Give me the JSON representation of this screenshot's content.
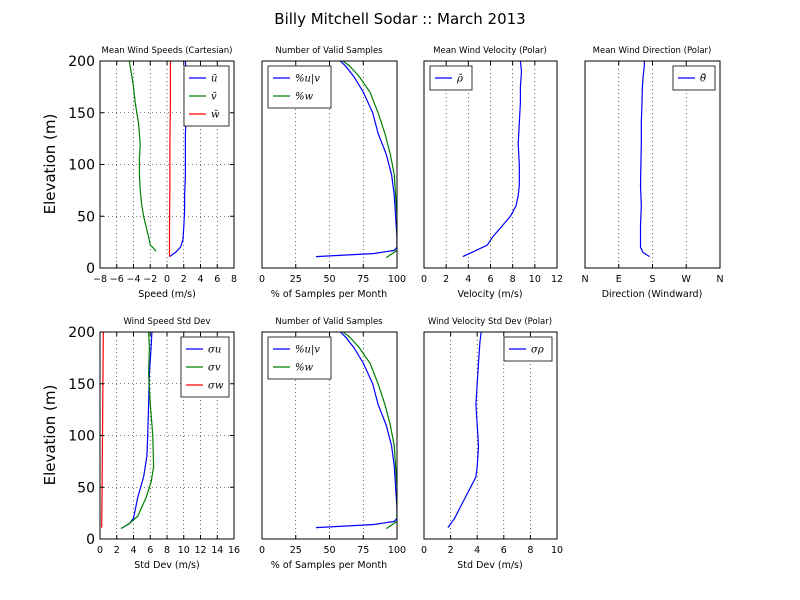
{
  "figure_title": "Billy Mitchell Sodar :: March 2013",
  "chart_data": [
    {
      "id": "p1",
      "type": "line",
      "title": "Mean Wind Speeds (Cartesian)",
      "xlabel": "Speed (m/s)",
      "ylabel": "Elevation (m)",
      "xlim": [
        -8,
        8
      ],
      "ylim": [
        0,
        200
      ],
      "xticks": [
        -8,
        -6,
        -4,
        -2,
        0,
        2,
        4,
        6,
        8
      ],
      "xtick_labels": [
        "−8",
        "−6",
        "−4",
        "−2",
        "0",
        "2",
        "4",
        "6",
        "8"
      ],
      "yticks": [
        0,
        50,
        100,
        150,
        200
      ],
      "ytick_labels": [
        "0",
        "50",
        "100",
        "150",
        "200"
      ],
      "grid": true,
      "legend": "top-right",
      "series": [
        {
          "name": "ū",
          "color": "#0000ff",
          "x": [
            0.3,
            1.0,
            1.6,
            1.9,
            2.0,
            2.1,
            2.1,
            2.2,
            2.2,
            2.2,
            2.3,
            2.2,
            2.3,
            2.2
          ],
          "y": [
            11,
            15,
            20,
            27,
            40,
            55,
            70,
            90,
            110,
            130,
            150,
            170,
            185,
            200
          ]
        },
        {
          "name": "v̄",
          "color": "#008000",
          "x": [
            -1.3,
            -1.6,
            -2.0,
            -2.2,
            -2.5,
            -2.8,
            -3.0,
            -3.2,
            -3.3,
            -3.3,
            -3.2,
            -3.4,
            -3.8,
            -4.0,
            -4.3,
            -4.5
          ],
          "y": [
            16,
            19,
            22,
            30,
            40,
            50,
            60,
            75,
            90,
            105,
            120,
            140,
            160,
            175,
            190,
            200
          ]
        },
        {
          "name": "w̄",
          "color": "#ff0000",
          "x": [
            0.3,
            0.3,
            0.35,
            0.35,
            0.4,
            0.4
          ],
          "y": [
            11,
            40,
            80,
            120,
            160,
            200
          ]
        }
      ]
    },
    {
      "id": "p2",
      "type": "line",
      "title": "Number of Valid Samples",
      "xlabel": "% of Samples per Month",
      "ylabel": "",
      "xlim": [
        0,
        100
      ],
      "ylim": [
        0,
        200
      ],
      "xticks": [
        0,
        25,
        50,
        75,
        100
      ],
      "xtick_labels": [
        "0",
        "25",
        "50",
        "75",
        "100"
      ],
      "grid": true,
      "legend": "top-left",
      "series": [
        {
          "name": "%u|v",
          "color": "#0000ff",
          "x": [
            40,
            83,
            98,
            100,
            100,
            99,
            98,
            96,
            92,
            86,
            82,
            75,
            68,
            62,
            58
          ],
          "y": [
            11,
            14,
            17,
            20,
            30,
            50,
            70,
            90,
            110,
            130,
            150,
            170,
            185,
            195,
            200
          ]
        },
        {
          "name": "%w",
          "color": "#008000",
          "x": [
            92,
            100,
            100,
            100,
            99,
            98,
            95,
            91,
            86,
            80,
            72,
            65,
            60
          ],
          "y": [
            10,
            17,
            20,
            50,
            70,
            90,
            110,
            130,
            150,
            170,
            185,
            195,
            200
          ]
        }
      ]
    },
    {
      "id": "p3",
      "type": "line",
      "title": "Mean Wind Velocity (Polar)",
      "xlabel": "Velocity (m/s)",
      "ylabel": "",
      "xlim": [
        0,
        12
      ],
      "ylim": [
        0,
        200
      ],
      "xticks": [
        0,
        2,
        4,
        6,
        8,
        10,
        12
      ],
      "xtick_labels": [
        "0",
        "2",
        "4",
        "6",
        "8",
        "10",
        "12"
      ],
      "grid": true,
      "legend": "top-left",
      "series": [
        {
          "name": "ρ̄",
          "color": "#0000ff",
          "x": [
            3.5,
            4.5,
            5.7,
            6.2,
            7.0,
            7.8,
            8.3,
            8.5,
            8.6,
            8.6,
            8.5,
            8.6,
            8.7,
            8.7,
            8.8,
            8.7
          ],
          "y": [
            11,
            16,
            22,
            30,
            40,
            50,
            60,
            70,
            80,
            100,
            120,
            140,
            160,
            175,
            190,
            200
          ]
        }
      ]
    },
    {
      "id": "p4",
      "type": "line",
      "title": "Mean Wind Direction (Polar)",
      "xlabel": "Direction (Windward)",
      "ylabel": "",
      "xlim": [
        0,
        360
      ],
      "ylim": [
        0,
        200
      ],
      "xticks": [
        0,
        90,
        180,
        270,
        360
      ],
      "xtick_labels": [
        "N",
        "E",
        "S",
        "W",
        "N"
      ],
      "grid": true,
      "legend": "top-right",
      "series": [
        {
          "name": "θ̄",
          "color": "#0000ff",
          "x": [
            172,
            155,
            148,
            148,
            150,
            148,
            149,
            150,
            150,
            152,
            153,
            155,
            158,
            158
          ],
          "y": [
            11,
            15,
            20,
            40,
            60,
            80,
            100,
            120,
            140,
            160,
            175,
            185,
            195,
            200
          ]
        }
      ]
    },
    {
      "id": "p5",
      "type": "line",
      "title": "Wind Speed Std Dev",
      "xlabel": "Std Dev (m/s)",
      "ylabel": "Elevation (m)",
      "xlim": [
        0,
        16
      ],
      "ylim": [
        0,
        200
      ],
      "xticks": [
        0,
        2,
        4,
        6,
        8,
        10,
        12,
        14,
        16
      ],
      "xtick_labels": [
        "0",
        "2",
        "4",
        "6",
        "8",
        "10",
        "12",
        "14",
        "16"
      ],
      "yticks": [
        0,
        50,
        100,
        150,
        200
      ],
      "ytick_labels": [
        "0",
        "50",
        "100",
        "150",
        "200"
      ],
      "grid": true,
      "legend": "top-right",
      "series": [
        {
          "name": "σu",
          "color": "#0000ff",
          "x": [
            2.7,
            3.5,
            4.0,
            4.5,
            5.2,
            5.6,
            5.7,
            5.8,
            5.9,
            6.1,
            6.2
          ],
          "y": [
            11,
            15,
            20,
            40,
            60,
            80,
            100,
            130,
            160,
            185,
            200
          ]
        },
        {
          "name": "σv",
          "color": "#008000",
          "x": [
            2.5,
            3.5,
            4.5,
            5.5,
            6.1,
            6.4,
            6.3,
            6.0,
            5.8,
            5.9,
            5.8
          ],
          "y": [
            10,
            15,
            22,
            40,
            55,
            70,
            100,
            130,
            160,
            185,
            200
          ]
        },
        {
          "name": "σw",
          "color": "#ff0000",
          "x": [
            0.2,
            0.25,
            0.3,
            0.35,
            0.4
          ],
          "y": [
            11,
            50,
            100,
            150,
            200
          ]
        }
      ]
    },
    {
      "id": "p6",
      "type": "line",
      "title": "Number of Valid Samples",
      "xlabel": "% of Samples per Month",
      "ylabel": "",
      "xlim": [
        0,
        100
      ],
      "ylim": [
        0,
        200
      ],
      "xticks": [
        0,
        25,
        50,
        75,
        100
      ],
      "xtick_labels": [
        "0",
        "25",
        "50",
        "75",
        "100"
      ],
      "grid": true,
      "legend": "top-left",
      "series": [
        {
          "name": "%u|v",
          "color": "#0000ff",
          "x": [
            40,
            83,
            98,
            100,
            100,
            99,
            98,
            96,
            92,
            86,
            82,
            75,
            68,
            62,
            58
          ],
          "y": [
            11,
            14,
            17,
            20,
            30,
            50,
            70,
            90,
            110,
            130,
            150,
            170,
            185,
            195,
            200
          ]
        },
        {
          "name": "%w",
          "color": "#008000",
          "x": [
            92,
            100,
            100,
            100,
            99,
            98,
            95,
            91,
            86,
            80,
            72,
            65,
            60
          ],
          "y": [
            10,
            17,
            20,
            50,
            70,
            90,
            110,
            130,
            150,
            170,
            185,
            195,
            200
          ]
        }
      ]
    },
    {
      "id": "p7",
      "type": "line",
      "title": "Wind Velocity Std Dev (Polar)",
      "xlabel": "Std Dev (m/s)",
      "ylabel": "",
      "xlim": [
        0,
        10
      ],
      "ylim": [
        0,
        200
      ],
      "xticks": [
        0,
        2,
        4,
        6,
        8,
        10
      ],
      "xtick_labels": [
        "0",
        "2",
        "4",
        "6",
        "8",
        "10"
      ],
      "grid": true,
      "legend": "top-right",
      "series": [
        {
          "name": "σρ",
          "color": "#0000ff",
          "x": [
            1.8,
            2.3,
            2.7,
            3.1,
            3.5,
            3.9,
            4.0,
            4.1,
            4.0,
            3.9,
            4.0,
            4.1,
            4.2,
            4.3
          ],
          "y": [
            11,
            20,
            30,
            40,
            50,
            60,
            70,
            90,
            110,
            130,
            150,
            170,
            190,
            200
          ]
        }
      ]
    }
  ]
}
